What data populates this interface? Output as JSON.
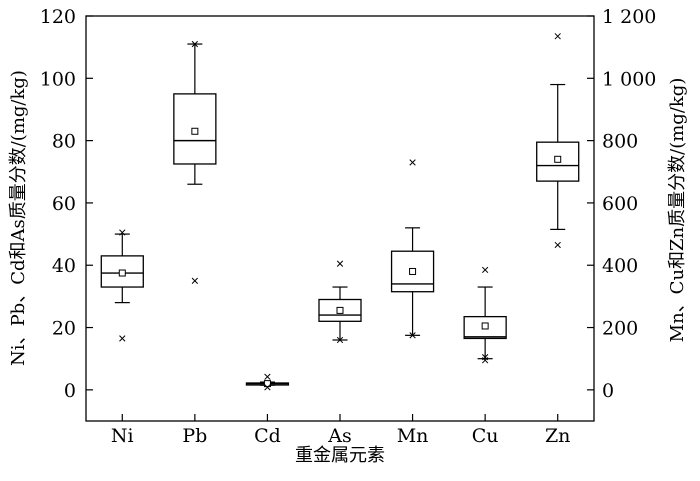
{
  "chart_data": {
    "type": "box",
    "xlabel": "重金属元素",
    "ylabel_left": "Ni、Pb、Cd和As质量分数/(mg/kg)",
    "ylabel_right": "Mn、Cu和Zn质量分数/(mg/kg)",
    "categories": [
      "Ni",
      "Pb",
      "Cd",
      "As",
      "Mn",
      "Cu",
      "Zn"
    ],
    "y_left_ticks": [
      "0",
      "20",
      "40",
      "60",
      "80",
      "100",
      "120"
    ],
    "y_right_ticks": [
      "0",
      "200",
      "400",
      "600",
      "800",
      "1 000",
      "1 200"
    ],
    "ylim_left": [
      -10,
      120
    ],
    "ylim_right": [
      -100,
      1200
    ],
    "boxes": [
      {
        "name": "Ni",
        "axis": "left",
        "whisker_low": 28,
        "q1": 33,
        "median": 37.5,
        "q3": 43,
        "whisker_high": 50,
        "mean": 37.5,
        "outliers": [
          16.5,
          50.5
        ]
      },
      {
        "name": "Pb",
        "axis": "left",
        "whisker_low": 66,
        "q1": 72.5,
        "median": 80,
        "q3": 95,
        "whisker_high": 111,
        "mean": 83,
        "outliers": [
          35,
          111
        ]
      },
      {
        "name": "Cd",
        "axis": "left",
        "whisker_low": 1.5,
        "q1": 1.7,
        "median": 2,
        "q3": 2.2,
        "whisker_high": 2.5,
        "mean": 2,
        "outliers": [
          0.8,
          4.2
        ]
      },
      {
        "name": "As",
        "axis": "left",
        "whisker_low": 16,
        "q1": 22,
        "median": 24,
        "q3": 29,
        "whisker_high": 33,
        "mean": 25.5,
        "outliers": [
          16,
          40.5
        ]
      },
      {
        "name": "Mn",
        "axis": "right",
        "whisker_low": 175,
        "q1": 315,
        "median": 340,
        "q3": 445,
        "whisker_high": 520,
        "mean": 380,
        "outliers": [
          175,
          730
        ]
      },
      {
        "name": "Cu",
        "axis": "right",
        "whisker_low": 100,
        "q1": 165,
        "median": 170,
        "q3": 235,
        "whisker_high": 330,
        "mean": 205,
        "outliers": [
          95,
          105,
          385
        ]
      },
      {
        "name": "Zn",
        "axis": "right",
        "whisker_low": 515,
        "q1": 670,
        "median": 720,
        "q3": 795,
        "whisker_high": 980,
        "mean": 740,
        "outliers": [
          465,
          1135
        ]
      }
    ]
  }
}
